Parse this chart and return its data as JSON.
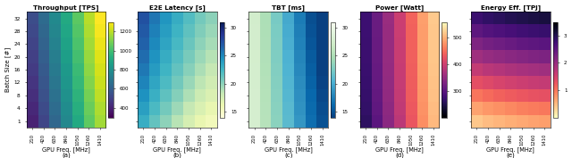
{
  "gpu_freqs": [
    210,
    420,
    630,
    840,
    1050,
    1260,
    1410
  ],
  "batch_sizes": [
    1,
    4,
    8,
    12,
    16,
    20,
    24,
    28,
    32
  ],
  "subplots": [
    {
      "title": "Throughput [TPS]",
      "label": "(a)",
      "cmap": "viridis",
      "vmin": 300,
      "vmax": 1300,
      "colorbar_ticks": [
        400,
        600,
        800,
        1000,
        1200
      ]
    },
    {
      "title": "E2E Latency [s]",
      "label": "(b)",
      "cmap": "YlGnBu",
      "vmin": 14,
      "vmax": 31,
      "colorbar_ticks": [
        15,
        20,
        25,
        30
      ]
    },
    {
      "title": "TBT [ms]",
      "label": "(c)",
      "cmap": "GnBu_r",
      "vmin": 14,
      "vmax": 31,
      "colorbar_ticks": [
        15,
        20,
        25,
        30
      ]
    },
    {
      "title": "Power [Watt]",
      "label": "(d)",
      "cmap": "magma",
      "vmin": 200,
      "vmax": 560,
      "colorbar_ticks": [
        300,
        400,
        500
      ]
    },
    {
      "title": "Energy Eff. [TPJ]",
      "label": "(e)",
      "cmap": "magma_r",
      "vmin": 0.0,
      "vmax": 3.5,
      "colorbar_ticks": [
        1,
        2,
        3
      ]
    }
  ],
  "xlabel": "GPU Freq. [MHz]",
  "ylabel": "Batch Size [#]",
  "xtick_labels": [
    "210",
    "420",
    "630",
    "840",
    "1050",
    "1260",
    "1410"
  ],
  "ytick_labels": [
    "1",
    "4",
    "8",
    "12",
    "16",
    "20",
    "24",
    "28",
    "32"
  ]
}
